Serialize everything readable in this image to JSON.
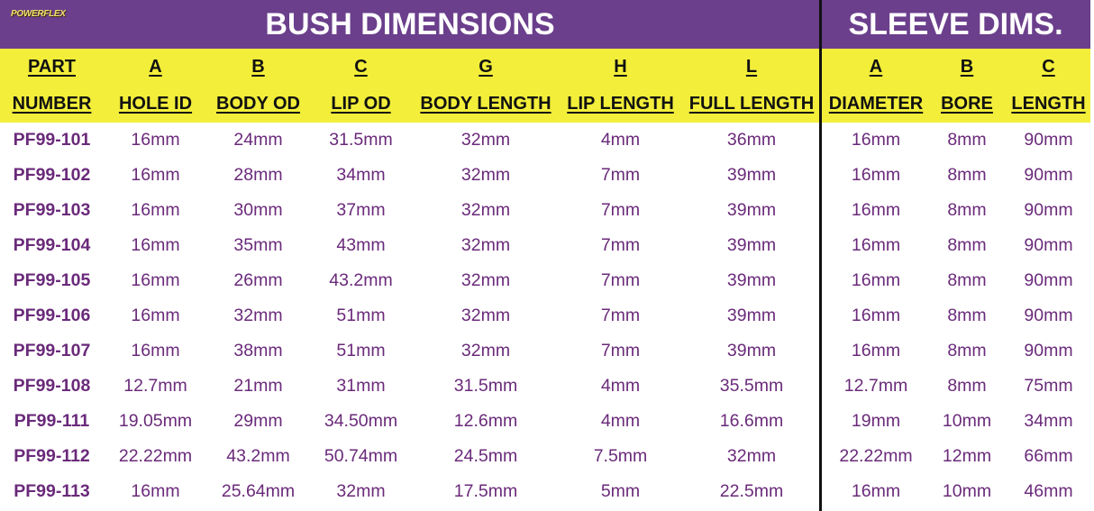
{
  "logo": "POWERFLEX",
  "titles": {
    "bush": "BUSH DIMENSIONS",
    "sleeve": "SLEEVE DIMS."
  },
  "colors": {
    "header_bg": "#6b3f8c",
    "subheader_bg": "#f2ee3a",
    "value_text": "#6a2a7a"
  },
  "columns": [
    {
      "letter": "PART",
      "label": "NUMBER"
    },
    {
      "letter": "A",
      "label": "HOLE ID"
    },
    {
      "letter": "B",
      "label": "BODY OD"
    },
    {
      "letter": "C",
      "label": "LIP OD"
    },
    {
      "letter": "G",
      "label": "BODY LENGTH"
    },
    {
      "letter": "H",
      "label": "LIP LENGTH"
    },
    {
      "letter": "L",
      "label": "FULL LENGTH"
    },
    {
      "letter": "A",
      "label": "DIAMETER"
    },
    {
      "letter": "B",
      "label": "BORE"
    },
    {
      "letter": "C",
      "label": "LENGTH"
    }
  ],
  "rows": [
    [
      "PF99-101",
      "16mm",
      "24mm",
      "31.5mm",
      "32mm",
      "4mm",
      "36mm",
      "16mm",
      "8mm",
      "90mm"
    ],
    [
      "PF99-102",
      "16mm",
      "28mm",
      "34mm",
      "32mm",
      "7mm",
      "39mm",
      "16mm",
      "8mm",
      "90mm"
    ],
    [
      "PF99-103",
      "16mm",
      "30mm",
      "37mm",
      "32mm",
      "7mm",
      "39mm",
      "16mm",
      "8mm",
      "90mm"
    ],
    [
      "PF99-104",
      "16mm",
      "35mm",
      "43mm",
      "32mm",
      "7mm",
      "39mm",
      "16mm",
      "8mm",
      "90mm"
    ],
    [
      "PF99-105",
      "16mm",
      "26mm",
      "43.2mm",
      "32mm",
      "7mm",
      "39mm",
      "16mm",
      "8mm",
      "90mm"
    ],
    [
      "PF99-106",
      "16mm",
      "32mm",
      "51mm",
      "32mm",
      "7mm",
      "39mm",
      "16mm",
      "8mm",
      "90mm"
    ],
    [
      "PF99-107",
      "16mm",
      "38mm",
      "51mm",
      "32mm",
      "7mm",
      "39mm",
      "16mm",
      "8mm",
      "90mm"
    ],
    [
      "PF99-108",
      "12.7mm",
      "21mm",
      "31mm",
      "31.5mm",
      "4mm",
      "35.5mm",
      "12.7mm",
      "8mm",
      "75mm"
    ],
    [
      "PF99-111",
      "19.05mm",
      "29mm",
      "34.50mm",
      "12.6mm",
      "4mm",
      "16.6mm",
      "19mm",
      "10mm",
      "34mm"
    ],
    [
      "PF99-112",
      "22.22mm",
      "43.2mm",
      "50.74mm",
      "24.5mm",
      "7.5mm",
      "32mm",
      "22.22mm",
      "12mm",
      "66mm"
    ],
    [
      "PF99-113",
      "16mm",
      "25.64mm",
      "32mm",
      "17.5mm",
      "5mm",
      "22.5mm",
      "16mm",
      "10mm",
      "46mm"
    ]
  ]
}
